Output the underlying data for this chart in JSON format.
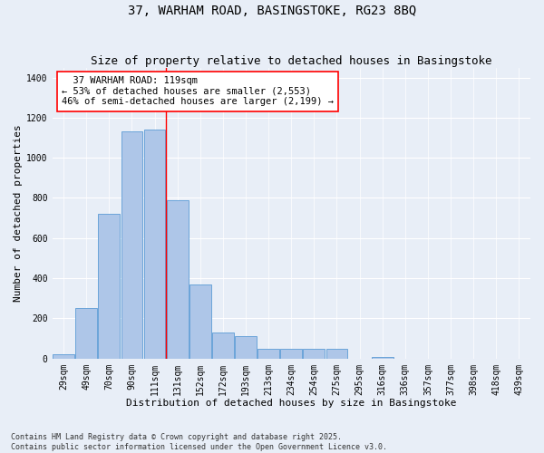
{
  "title1": "37, WARHAM ROAD, BASINGSTOKE, RG23 8BQ",
  "title2": "Size of property relative to detached houses in Basingstoke",
  "xlabel": "Distribution of detached houses by size in Basingstoke",
  "ylabel": "Number of detached properties",
  "footnote": "Contains HM Land Registry data © Crown copyright and database right 2025.\nContains public sector information licensed under the Open Government Licence v3.0.",
  "bin_labels": [
    "29sqm",
    "49sqm",
    "70sqm",
    "90sqm",
    "111sqm",
    "131sqm",
    "152sqm",
    "172sqm",
    "193sqm",
    "213sqm",
    "234sqm",
    "254sqm",
    "275sqm",
    "295sqm",
    "316sqm",
    "336sqm",
    "357sqm",
    "377sqm",
    "398sqm",
    "418sqm",
    "439sqm"
  ],
  "bar_heights": [
    20,
    250,
    720,
    1130,
    1140,
    790,
    370,
    130,
    110,
    50,
    50,
    50,
    50,
    0,
    10,
    0,
    0,
    0,
    0,
    0,
    0
  ],
  "bar_color": "#aec6e8",
  "bar_edge_color": "#5b9bd5",
  "annotation_line1": "  37 WARHAM ROAD: 119sqm",
  "annotation_line2": "← 53% of detached houses are smaller (2,553)",
  "annotation_line3": "46% of semi-detached houses are larger (2,199) →",
  "red_line_x": 4.5,
  "ylim": [
    0,
    1450
  ],
  "yticks": [
    0,
    200,
    400,
    600,
    800,
    1000,
    1200,
    1400
  ],
  "background_color": "#e8eef7",
  "grid_color": "#ffffff",
  "title_fontsize": 10,
  "subtitle_fontsize": 9,
  "axis_label_fontsize": 8,
  "tick_fontsize": 7,
  "annotation_fontsize": 7.5
}
